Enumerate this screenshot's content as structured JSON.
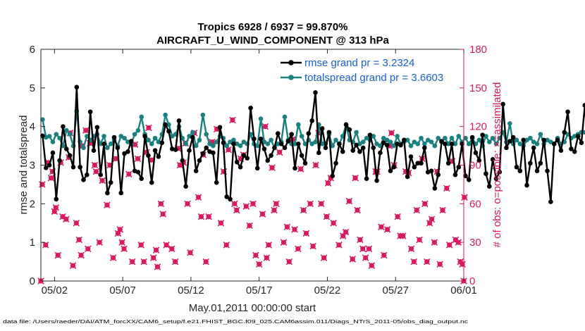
{
  "chart_data": {
    "type": "line",
    "title_line1": "Tropics 6928 / 6937 = 99.870%",
    "title_line2": "AIRCRAFT_U_WIND_COMPONENT @ 313 hPa",
    "xlabel": "May.01,2011 00:00:00 start",
    "ylabel_left": "rmse and totalspread",
    "ylabel_right": "# of obs: o=possible; ×=assimilated",
    "xlim": [
      0,
      31
    ],
    "ylim_left": [
      0,
      6
    ],
    "ylim_right": [
      0,
      180
    ],
    "x_ticks": [
      {
        "value": 1,
        "label": "05/02"
      },
      {
        "value": 6,
        "label": "05/07"
      },
      {
        "value": 11,
        "label": "05/12"
      },
      {
        "value": 16,
        "label": "05/17"
      },
      {
        "value": 21,
        "label": "05/22"
      },
      {
        "value": 26,
        "label": "05/27"
      },
      {
        "value": 31,
        "label": "06/01"
      }
    ],
    "y_ticks_left": [
      "0",
      "1",
      "2",
      "3",
      "4",
      "5",
      "6"
    ],
    "y_ticks_right": [
      "0",
      "30",
      "60",
      "90",
      "120",
      "150",
      "180"
    ],
    "colors": {
      "rmse": "#000000",
      "spread": "#1a8080",
      "obs": "#d81b60",
      "legend_text": "#1a5fd6"
    },
    "footer": "data file: /Users/raeder/DAI/ATM_forcXX/CAM6_setup/f.e21.FHIST_BGC.f09_025.CAM6assim.011/Diags_NTrS_2011-05/obs_diag_output.nc",
    "series": [
      {
        "name": "rmse",
        "legend": "rmse grand pr = 3.2324",
        "x_start": 0.125,
        "x_step": 0.25,
        "values": [
          3.76,
          2.93,
          3.0,
          3.32,
          2.12,
          3.12,
          4.0,
          3.42,
          3.25,
          2.95,
          5.02,
          2.95,
          2.62,
          2.75,
          4.38,
          3.38,
          3.98,
          2.75,
          3.55,
          2.28,
          2.55,
          3.72,
          3.45,
          2.28,
          3.3,
          3.35,
          3.62,
          2.85,
          2.82,
          2.65,
          3.75,
          3.25,
          2.55,
          3.38,
          3.22,
          3.58,
          4.05,
          3.88,
          3.42,
          3.4,
          4.15,
          3.12,
          2.45,
          3.38,
          3.72,
          2.85,
          3.12,
          3.3,
          3.45,
          3.35,
          3.32,
          2.55,
          3.98,
          3.58,
          2.18,
          2.12,
          3.55,
          3.08,
          2.95,
          3.25,
          3.18,
          4.48,
          3.68,
          2.92,
          3.68,
          3.42,
          3.12,
          3.25,
          3.45,
          3.82,
          3.55,
          3.45,
          3.62,
          3.8,
          2.92,
          3.55,
          3.25,
          3.05,
          3.82,
          4.15,
          4.88,
          3.32,
          3.95,
          3.45,
          3.85,
          2.72,
          3.05,
          3.55,
          3.35,
          4.05,
          3.92,
          3.38,
          3.52,
          3.35,
          3.45,
          2.65,
          3.78,
          3.45,
          2.6,
          3.32,
          3.58,
          3.52,
          2.85,
          2.95,
          3.55,
          3.52,
          3.65,
          2.7,
          3.22,
          2.95,
          3.05,
          3.05,
          3.45,
          2.82,
          2.85,
          2.4,
          2.75,
          3.62,
          3.55,
          3.05,
          3.55,
          2.75,
          2.95,
          3.55,
          2.72,
          2.62,
          3.72,
          3.32,
          3.12,
          3.78,
          2.78,
          2.45,
          3.15,
          2.65,
          2.82,
          4.58,
          3.45,
          3.62,
          3.72,
          2.95,
          2.85,
          3.65,
          2.48,
          3.05,
          3.45,
          2.85,
          3.05,
          3.65,
          2.85,
          2.05,
          3.55,
          3.65,
          3.38,
          3.85,
          4.38,
          3.42,
          3.35,
          3.75,
          3.58,
          4.55,
          3.38
        ]
      },
      {
        "name": "totalspread",
        "legend": "totalspread grand pr = 3.6603",
        "x_start": 0.125,
        "x_step": 0.25,
        "values": [
          4.18,
          3.72,
          3.75,
          3.6,
          3.8,
          3.7,
          3.5,
          3.9,
          3.8,
          3.5,
          4.4,
          3.6,
          3.45,
          3.75,
          3.65,
          3.75,
          3.8,
          3.55,
          3.75,
          3.45,
          3.55,
          3.65,
          3.5,
          3.75,
          3.7,
          3.6,
          3.55,
          3.8,
          3.9,
          4.25,
          3.8,
          3.65,
          3.55,
          3.7,
          3.6,
          3.8,
          4.3,
          4.05,
          3.75,
          3.8,
          4.0,
          3.7,
          3.55,
          3.75,
          3.85,
          3.5,
          3.65,
          4.3,
          3.8,
          3.55,
          3.5,
          3.6,
          3.75,
          3.7,
          3.5,
          3.6,
          3.65,
          3.55,
          3.5,
          3.6,
          3.55,
          3.8,
          3.55,
          3.5,
          4.2,
          3.6,
          3.55,
          3.65,
          3.45,
          3.55,
          3.6,
          4.25,
          3.65,
          3.55,
          3.55,
          4.05,
          3.75,
          3.55,
          3.65,
          3.55,
          3.6,
          4.05,
          3.55,
          3.55,
          3.8,
          3.5,
          3.65,
          3.55,
          3.75,
          4.05,
          3.65,
          3.6,
          3.85,
          3.55,
          3.6,
          3.7,
          3.65,
          3.75,
          3.55,
          3.5,
          3.7,
          3.65,
          3.6,
          3.5,
          3.75,
          3.55,
          3.6,
          3.65,
          3.5,
          3.6,
          3.55,
          3.7,
          3.55,
          3.65,
          3.6,
          3.5,
          3.7,
          3.6,
          3.7,
          3.55,
          3.7,
          3.55,
          3.75,
          3.6,
          3.7,
          3.55,
          3.7,
          3.55,
          3.65,
          3.5,
          3.75,
          3.6,
          3.7,
          3.55,
          3.7,
          3.85,
          3.6,
          4.08,
          3.55,
          3.65,
          3.55,
          3.5,
          3.65,
          3.7,
          3.6,
          3.55,
          3.8,
          3.55,
          3.65,
          3.6,
          3.55,
          3.7,
          3.55,
          3.6,
          3.8,
          3.7,
          3.75,
          3.8,
          3.85,
          3.85
        ]
      },
      {
        "name": "observations",
        "axis": "right",
        "points": [
          [
            0,
            0
          ],
          [
            0.1,
            75
          ],
          [
            0.35,
            28
          ],
          [
            0.55,
            92
          ],
          [
            0.75,
            80
          ],
          [
            0.85,
            85
          ],
          [
            1.0,
            54
          ],
          [
            1.1,
            57
          ],
          [
            1.25,
            20
          ],
          [
            1.45,
            92
          ],
          [
            1.6,
            50
          ],
          [
            1.85,
            48
          ],
          [
            2.05,
            96
          ],
          [
            2.15,
            115
          ],
          [
            2.35,
            12
          ],
          [
            2.6,
            45
          ],
          [
            2.8,
            32
          ],
          [
            2.95,
            20
          ],
          [
            3.05,
            105
          ],
          [
            3.3,
            117
          ],
          [
            3.45,
            25
          ],
          [
            3.6,
            107
          ],
          [
            3.75,
            108
          ],
          [
            3.95,
            90
          ],
          [
            4.05,
            85
          ],
          [
            4.3,
            30
          ],
          [
            4.5,
            78
          ],
          [
            4.85,
            59
          ],
          [
            5.05,
            90
          ],
          [
            5.3,
            18
          ],
          [
            5.5,
            95
          ],
          [
            5.65,
            37
          ],
          [
            5.8,
            40
          ],
          [
            5.95,
            30
          ],
          [
            6.1,
            25
          ],
          [
            6.45,
            83
          ],
          [
            6.7,
            15
          ],
          [
            6.9,
            106
          ],
          [
            7.1,
            95
          ],
          [
            7.35,
            28
          ],
          [
            7.55,
            15
          ],
          [
            7.75,
            100
          ],
          [
            7.9,
            119
          ],
          [
            8.1,
            94
          ],
          [
            8.25,
            18
          ],
          [
            8.45,
            24
          ],
          [
            8.55,
            11
          ],
          [
            8.8,
            60
          ],
          [
            8.95,
            52
          ],
          [
            9.2,
            28
          ],
          [
            9.6,
            25
          ],
          [
            9.85,
            15
          ],
          [
            10.05,
            103
          ],
          [
            10.2,
            90
          ],
          [
            10.45,
            92
          ],
          [
            10.6,
            107
          ],
          [
            10.75,
            60
          ],
          [
            10.95,
            22
          ],
          [
            11.25,
            115
          ],
          [
            11.55,
            65
          ],
          [
            11.75,
            50
          ],
          [
            11.9,
            98
          ],
          [
            12.1,
            15
          ],
          [
            12.3,
            50
          ],
          [
            12.55,
            108
          ],
          [
            12.9,
            118
          ],
          [
            13.2,
            45
          ],
          [
            13.4,
            85
          ],
          [
            13.6,
            28
          ],
          [
            13.75,
            102
          ],
          [
            14.05,
            125
          ],
          [
            14.2,
            60
          ],
          [
            14.35,
            55
          ],
          [
            14.65,
            95
          ],
          [
            14.85,
            98
          ],
          [
            15.05,
            58
          ],
          [
            15.3,
            43
          ],
          [
            15.55,
            60
          ],
          [
            15.75,
            20
          ],
          [
            16.0,
            13
          ],
          [
            16.25,
            52
          ],
          [
            16.45,
            120
          ],
          [
            16.55,
            18
          ],
          [
            16.7,
            28
          ],
          [
            16.95,
            88
          ],
          [
            17.1,
            55
          ],
          [
            17.25,
            60
          ],
          [
            17.5,
            100
          ],
          [
            17.8,
            30
          ],
          [
            18.05,
            42
          ],
          [
            18.2,
            15
          ],
          [
            18.45,
            110
          ],
          [
            18.6,
            40
          ],
          [
            18.85,
            25
          ],
          [
            19.05,
            87
          ],
          [
            19.25,
            55
          ],
          [
            19.45,
            37
          ],
          [
            19.75,
            60
          ],
          [
            19.95,
            27
          ],
          [
            20.15,
            90
          ],
          [
            20.35,
            115
          ],
          [
            20.55,
            60
          ],
          [
            20.75,
            18
          ],
          [
            20.95,
            50
          ],
          [
            21.05,
            76
          ],
          [
            21.25,
            80
          ],
          [
            21.45,
            45
          ],
          [
            21.85,
            28
          ],
          [
            22.15,
            35
          ],
          [
            22.35,
            38
          ],
          [
            22.6,
            62
          ],
          [
            22.85,
            17
          ],
          [
            23.05,
            80
          ],
          [
            23.2,
            55
          ],
          [
            23.4,
            32
          ],
          [
            23.6,
            25
          ],
          [
            23.8,
            18
          ],
          [
            24.05,
            25
          ],
          [
            24.25,
            12
          ],
          [
            24.55,
            85
          ],
          [
            24.65,
            85
          ],
          [
            24.95,
            42
          ],
          [
            25.15,
            20
          ],
          [
            25.4,
            40
          ],
          [
            25.55,
            105
          ],
          [
            25.7,
            115
          ],
          [
            25.9,
            90
          ],
          [
            26.15,
            50
          ],
          [
            26.35,
            35
          ],
          [
            26.55,
            35
          ],
          [
            26.75,
            85
          ],
          [
            26.95,
            84
          ],
          [
            27.15,
            25
          ],
          [
            27.35,
            15
          ],
          [
            27.55,
            55
          ],
          [
            27.75,
            32
          ],
          [
            27.95,
            95
          ],
          [
            28.15,
            60
          ],
          [
            28.3,
            15
          ],
          [
            28.5,
            45
          ],
          [
            28.65,
            48
          ],
          [
            28.85,
            30
          ],
          [
            29.05,
            85
          ],
          [
            29.25,
            13
          ],
          [
            29.45,
            55
          ],
          [
            29.75,
            72
          ],
          [
            29.95,
            28
          ],
          [
            30.15,
            93
          ],
          [
            30.4,
            32
          ],
          [
            30.6,
            30
          ],
          [
            30.75,
            15
          ],
          [
            30.9,
            13
          ],
          [
            31.0,
            0
          ],
          [
            31.05,
            65
          ]
        ]
      }
    ]
  }
}
